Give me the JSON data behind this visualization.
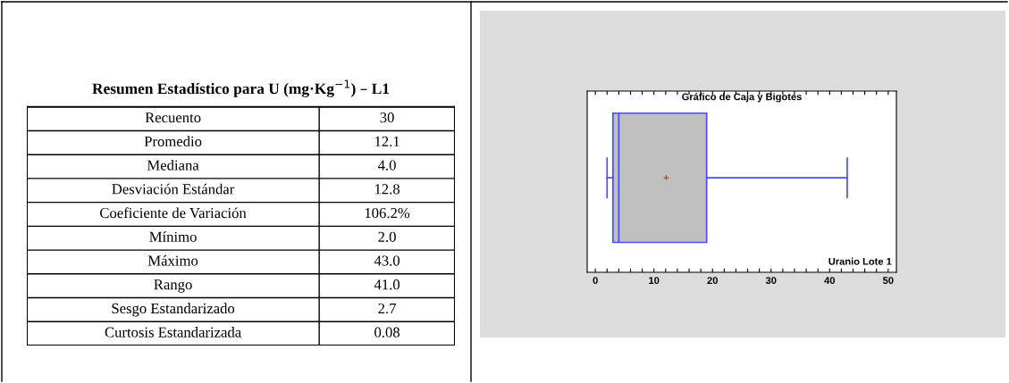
{
  "chart_data": [
    {
      "type": "other",
      "title": "Resumen Estadístico para U (mg·Kg$^{−1}$) – L1",
      "categories": [
        "Recuento",
        "Promedio",
        "Mediana",
        "Desviación Estándar",
        "Coeficiente de Variación",
        "Mínimo",
        "Máximo",
        "Rango",
        "Sesgo Estandarizado",
        "Curtosis Estandarizada"
      ],
      "value_labels": [
        "30",
        "12.1",
        "4.0",
        "12.8",
        "106.2%",
        "2.0",
        "43.0",
        "41.0",
        "2.7",
        "0.08"
      ]
    },
    {
      "type": "box",
      "title": "Gráfico de Caja y Bigotes",
      "orientation": "horizontal",
      "categories": [
        null
      ],
      "series": [
        {
          "color": "#4a4aff",
          "boxes": [
            {
              "low": 2.0,
              "q1": 3.0,
              "median": 4.0,
              "q3": 19.0,
              "high": 43.0,
              "mean": 12.1
            }
          ]
        }
      ],
      "xlim": [
        -1.4,
        51.4
      ],
      "xticks": [
        0,
        {
          "value": 2,
          "label": null
        },
        {
          "value": 4,
          "label": null
        },
        {
          "value": 6,
          "label": null
        },
        {
          "value": 8,
          "label": null
        },
        10,
        {
          "value": 12,
          "label": null
        },
        {
          "value": 14,
          "label": null
        },
        {
          "value": 16,
          "label": null
        },
        {
          "value": 18,
          "label": null
        },
        20,
        {
          "value": 22,
          "label": null
        },
        {
          "value": 24,
          "label": null
        },
        {
          "value": 26,
          "label": null
        },
        {
          "value": 28,
          "label": null
        },
        30,
        {
          "value": 32,
          "label": null
        },
        {
          "value": 34,
          "label": null
        },
        {
          "value": 36,
          "label": null
        },
        {
          "value": 38,
          "label": null
        },
        40,
        {
          "value": 42,
          "label": null
        },
        {
          "value": 44,
          "label": null
        },
        {
          "value": 46,
          "label": null
        },
        {
          "value": 48,
          "label": null
        },
        50
      ],
      "tick_labels": "x",
      "grid": false,
      "annotations": [
        "Uranio Lote 1"
      ]
    }
  ]
}
